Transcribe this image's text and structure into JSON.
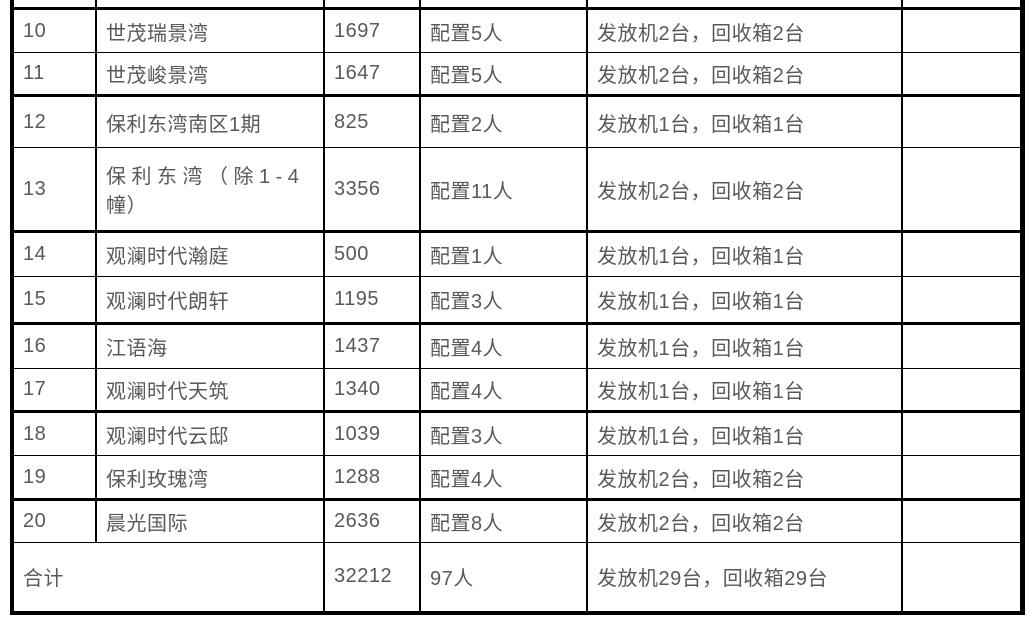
{
  "colors": {
    "border": "#000000",
    "text": "#595959",
    "background": "#ffffff"
  },
  "table": {
    "rows": [
      {
        "no": "10",
        "name": "世茂瑞景湾",
        "count": "1697",
        "staffing": "配置5人",
        "equipment": "发放机2台，回收箱2台",
        "note": ""
      },
      {
        "no": "11",
        "name": "世茂峻景湾",
        "count": "1647",
        "staffing": "配置5人",
        "equipment": "发放机2台，回收箱2台",
        "note": ""
      },
      {
        "no": "12",
        "name": "保利东湾南区1期",
        "count": "825",
        "staffing": "配置2人",
        "equipment": "发放机1台，回收箱1台",
        "note": ""
      },
      {
        "no": "13",
        "name": "保利东湾（除1-4幢）",
        "name_lines": [
          "保利东湾（除1-4",
          "幢）"
        ],
        "count": "3356",
        "staffing": "配置11人",
        "equipment": "发放机2台，回收箱2台",
        "note": ""
      },
      {
        "no": "14",
        "name": "观澜时代瀚庭",
        "count": "500",
        "staffing": "配置1人",
        "equipment": "发放机1台，回收箱1台",
        "note": ""
      },
      {
        "no": "15",
        "name": "观澜时代朗轩",
        "count": "1195",
        "staffing": "配置3人",
        "equipment": "发放机1台，回收箱1台",
        "note": ""
      },
      {
        "no": "16",
        "name": "江语海",
        "count": "1437",
        "staffing": "配置4人",
        "equipment": "发放机1台，回收箱1台",
        "note": ""
      },
      {
        "no": "17",
        "name": "观澜时代天筑",
        "count": "1340",
        "staffing": "配置4人",
        "equipment": "发放机1台，回收箱1台",
        "note": ""
      },
      {
        "no": "18",
        "name": "观澜时代云邸",
        "count": "1039",
        "staffing": "配置3人",
        "equipment": "发放机1台，回收箱1台",
        "note": ""
      },
      {
        "no": "19",
        "name": "保利玫瑰湾",
        "count": "1288",
        "staffing": "配置4人",
        "equipment": "发放机2台，回收箱2台",
        "note": ""
      },
      {
        "no": "20",
        "name": "晨光国际",
        "count": "2636",
        "staffing": "配置8人",
        "equipment": "发放机2台，回收箱2台",
        "note": ""
      }
    ],
    "total_row": {
      "label": "合计",
      "count": "32212",
      "staffing": "97人",
      "equipment": "发放机29台，回收箱29台",
      "note": ""
    }
  }
}
